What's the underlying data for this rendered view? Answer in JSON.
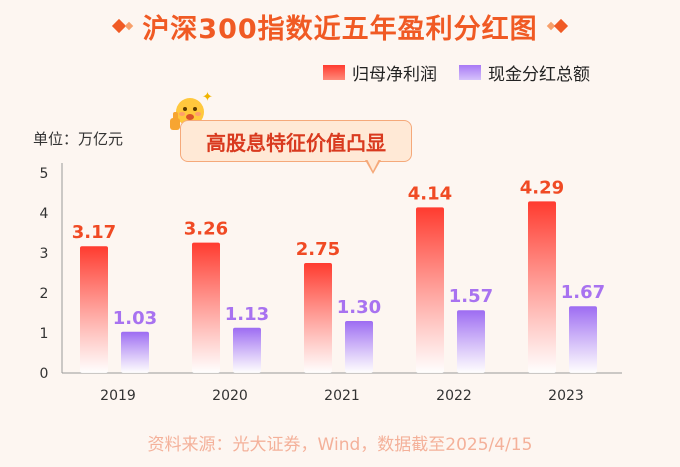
{
  "title": "沪深300指数近五年盈利分红图",
  "unit_label": "单位：万亿元",
  "callout": "高股息特征价值凸显",
  "source": "资料来源：光大证券，Wind，数据截至2025/4/15",
  "colors": {
    "title": "#f05a24",
    "net_profit": "#ff3b2f",
    "dividend": "#a979f5",
    "net_profit_label": "#f04a24",
    "dividend_label": "#a872f0"
  },
  "chart_data": {
    "type": "bar",
    "categories": [
      "2019",
      "2020",
      "2021",
      "2022",
      "2023"
    ],
    "series": [
      {
        "name": "归母净利润",
        "values": [
          3.17,
          3.26,
          2.75,
          4.14,
          4.29
        ]
      },
      {
        "name": "现金分红总额",
        "values": [
          1.03,
          1.13,
          1.3,
          1.57,
          1.67
        ]
      }
    ],
    "yticks": [
      0,
      1,
      2,
      3,
      4,
      5
    ],
    "ylim": [
      0,
      5
    ],
    "value_labels": {
      "net_profit": [
        "3.17",
        "3.26",
        "2.75",
        "4.14",
        "4.29"
      ],
      "dividend": [
        "1.03",
        "1.13",
        "1.30",
        "1.57",
        "1.67"
      ]
    },
    "legend_position": "top-right"
  }
}
